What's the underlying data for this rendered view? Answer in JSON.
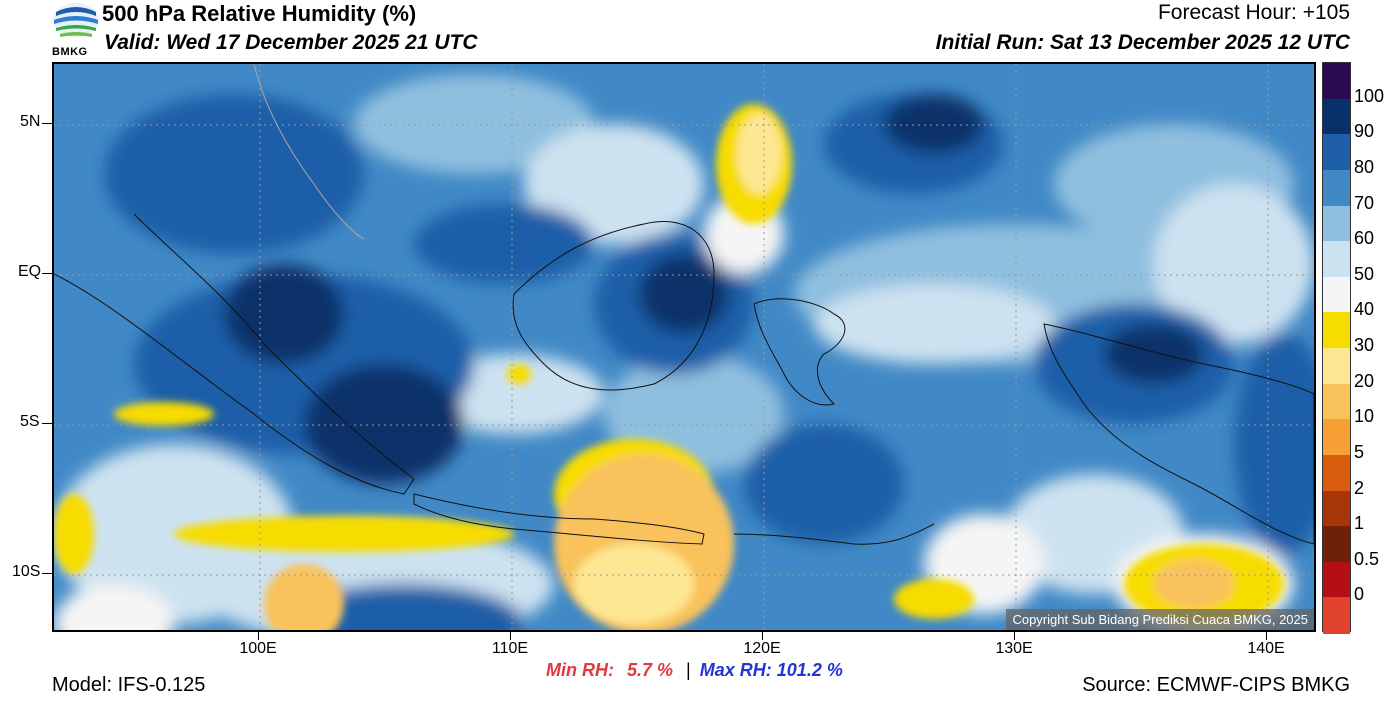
{
  "header": {
    "title": "500 hPa Relative Humidity (%)",
    "valid": "Valid: Wed 17 December 2025 21 UTC",
    "forecast_hour": "Forecast Hour: +105",
    "initial_run": "Initial Run: Sat 13 December 2025 12 UTC",
    "logo_text": "BMKG"
  },
  "axes": {
    "y_labels": [
      "5N",
      "EQ",
      "5S",
      "10S"
    ],
    "x_labels": [
      "100E",
      "110E",
      "120E",
      "130E",
      "140E"
    ]
  },
  "legend": {
    "labels": [
      "100",
      "90",
      "80",
      "70",
      "60",
      "50",
      "40",
      "30",
      "20",
      "10",
      "5",
      "2",
      "1",
      "0.5",
      "0"
    ],
    "colors": [
      "#2a0a52",
      "#08306b",
      "#1f5ea8",
      "#4189c6",
      "#8fbfdf",
      "#cde2f0",
      "#f5f5f5",
      "#f7dc00",
      "#fde793",
      "#f9c25b",
      "#f7a035",
      "#d85d0f",
      "#a83508",
      "#6e2008",
      "#b40f14",
      "#e2432f"
    ]
  },
  "stats": {
    "min_label": "Min RH:",
    "min_value": "5.7 %",
    "separator": "|",
    "max_label": "Max RH:",
    "max_value": "101.2 %"
  },
  "footer": {
    "model": "Model: IFS-0.125",
    "source": "Source: ECMWF-CIPS BMKG",
    "copyright": "Copyright Sub Bidang Prediksi Cuaca BMKG, 2025"
  }
}
